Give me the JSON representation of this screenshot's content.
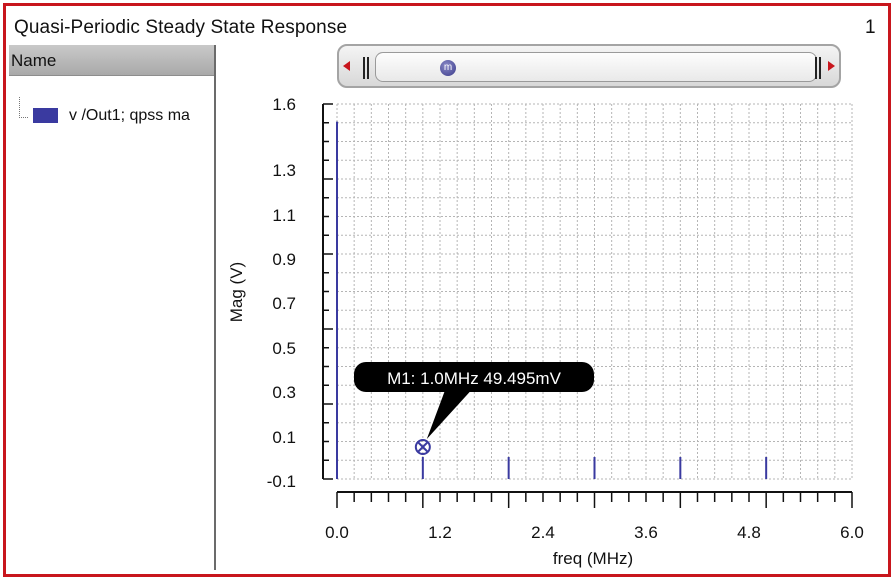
{
  "window": {
    "title": "Quasi-Periodic Steady State Response",
    "corner_number": "1"
  },
  "trace_list": {
    "header": "Name",
    "items": [
      {
        "label": "v /Out1; qpss ma",
        "color": "#3a3aa0"
      }
    ]
  },
  "scrollbar": {
    "marker_badge": "m"
  },
  "marker": {
    "label": "M1: 1.0MHz 49.495mV"
  },
  "chart_data": {
    "type": "bar",
    "title": "",
    "xlabel": "freq (MHz)",
    "ylabel": "Mag (V)",
    "xlim": [
      0.0,
      6.0
    ],
    "ylim": [
      -0.1,
      1.6
    ],
    "xticks": [
      "0.0",
      "1.2",
      "2.4",
      "3.6",
      "4.8",
      "6.0"
    ],
    "yticks": [
      "1.6",
      "1.3",
      "1.1",
      "0.9",
      "0.7",
      "0.5",
      "0.3",
      "0.1",
      "-0.1"
    ],
    "ytick_values": [
      1.6,
      1.3,
      1.1,
      0.9,
      0.7,
      0.5,
      0.3,
      0.1,
      -0.1
    ],
    "grid": true,
    "series": [
      {
        "name": "v /Out1; qpss ma",
        "color": "#3a3aa0",
        "x": [
          0.0,
          1.0,
          2.0,
          3.0,
          4.0,
          5.0
        ],
        "y": [
          1.52,
          0.049495,
          0.0,
          0.0,
          0.0,
          0.0
        ]
      }
    ],
    "markers": [
      {
        "name": "M1",
        "x": 1.0,
        "y": 0.049495
      }
    ]
  }
}
